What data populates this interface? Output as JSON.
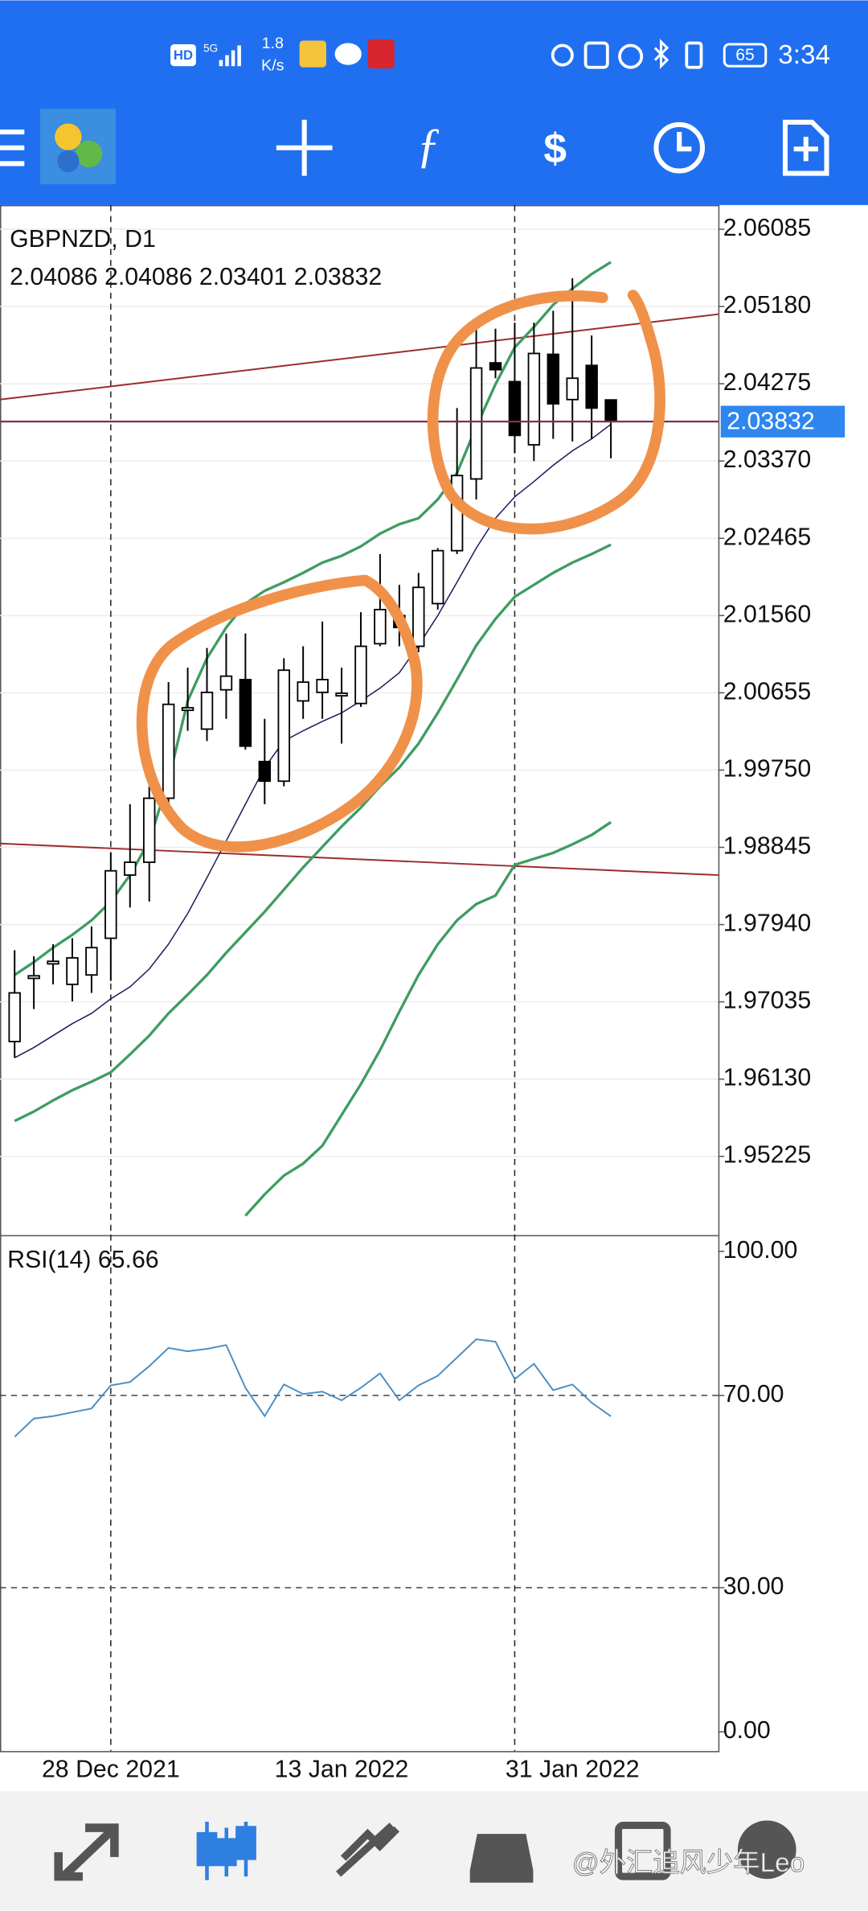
{
  "status_bar": {
    "network": "HD",
    "signal": "5G",
    "speed": "1.8",
    "speed_unit": "K/s",
    "battery": "65",
    "time": "3:34"
  },
  "watermark": "@外汇追风少年Leo",
  "chart_data": [
    {
      "type": "candlestick",
      "title": "GBPNZD, D1",
      "categories": [
        null,
        null,
        null,
        null,
        null,
        "28 Dec 2021",
        null,
        null,
        null,
        null,
        null,
        null,
        null,
        null,
        null,
        null,
        null,
        "13 Jan 2022",
        null,
        null,
        null,
        null,
        null,
        null,
        null,
        null,
        null,
        null,
        null,
        "31 Jan 2022",
        null,
        null
      ],
      "open": [
        1.9657,
        1.9731,
        1.9748,
        1.9724,
        1.9735,
        1.9778,
        1.9852,
        1.9867,
        1.9942,
        2.0045,
        2.0023,
        2.0069,
        2.0081,
        1.9985,
        1.9962,
        2.0056,
        2.0066,
        2.0062,
        2.0053,
        2.0123,
        2.0156,
        2.012,
        2.017,
        2.0232,
        2.0316,
        2.0452,
        2.043,
        2.0356,
        2.0462,
        2.0409,
        2.0449,
        2.04086
      ],
      "high": [
        1.9764,
        1.9757,
        1.9771,
        1.9778,
        1.9792,
        1.9878,
        1.9935,
        1.9956,
        2.0078,
        2.0095,
        2.0118,
        2.0135,
        2.0135,
        2.0035,
        2.0106,
        2.012,
        2.0149,
        2.0095,
        2.016,
        2.0228,
        2.0192,
        2.0206,
        2.0235,
        2.0399,
        2.0499,
        2.0492,
        2.0499,
        2.0499,
        2.0513,
        2.0551,
        2.0484,
        2.04086
      ],
      "low": [
        1.9638,
        1.9695,
        1.9724,
        1.9704,
        1.9714,
        1.9728,
        1.9814,
        1.9821,
        1.9935,
        2.0021,
        2.0009,
        2.0035,
        1.9999,
        1.9935,
        1.9956,
        2.0035,
        2.0035,
        2.0006,
        2.0049,
        2.012,
        2.012,
        2.0113,
        2.0163,
        2.0228,
        2.0292,
        2.0434,
        2.0346,
        2.0337,
        2.0363,
        2.036,
        2.0363,
        2.03401
      ],
      "close": [
        1.9714,
        1.9734,
        1.9751,
        1.9755,
        1.9767,
        1.9857,
        1.9867,
        1.9942,
        2.0052,
        2.0048,
        2.0066,
        2.0085,
        2.0003,
        1.9962,
        2.0092,
        2.0078,
        2.0081,
        2.0065,
        2.012,
        2.0163,
        2.0142,
        2.0189,
        2.0232,
        2.032,
        2.0446,
        2.0444,
        2.0367,
        2.0463,
        2.0404,
        2.0434,
        2.0399,
        2.03832
      ],
      "up_color": "#ffffff",
      "down_color": "#000000",
      "series": [
        {
          "color": "#3f9c62",
          "values": [
            1.9735,
            1.975,
            1.9767,
            1.9782,
            1.9799,
            1.9821,
            1.9852,
            1.9892,
            1.9963,
            2.0056,
            2.0106,
            2.0142,
            2.017,
            2.0185,
            2.0195,
            2.0206,
            2.0218,
            2.0226,
            2.0237,
            2.0252,
            2.0263,
            2.027,
            2.0292,
            2.0323,
            2.0377,
            2.0427,
            2.047,
            2.0494,
            2.052,
            2.0539,
            2.0556,
            2.057
          ]
        },
        {
          "color": "#1c1c5a",
          "values": [
            1.9638,
            1.965,
            1.9664,
            1.9678,
            1.969,
            1.9707,
            1.9721,
            1.9742,
            1.9771,
            1.9807,
            1.9849,
            1.9892,
            1.9935,
            1.9978,
            2.0009,
            2.0021,
            2.0032,
            2.0042,
            2.0056,
            2.0071,
            2.0089,
            2.0121,
            2.0156,
            2.0195,
            2.0235,
            2.027,
            2.0295,
            2.0313,
            2.0332,
            2.0349,
            2.0363,
            2.038
          ]
        },
        {
          "color": "#3f9c62",
          "values": [
            1.9564,
            1.9575,
            1.9588,
            1.96,
            1.961,
            1.9621,
            1.9642,
            1.9664,
            1.969,
            1.9712,
            1.9735,
            1.9761,
            1.9785,
            1.9809,
            1.9835,
            1.9861,
            1.9885,
            1.9909,
            1.9931,
            1.9956,
            1.9978,
            2.0006,
            2.0042,
            2.0081,
            2.0121,
            2.0152,
            2.0178,
            2.0192,
            2.0206,
            2.0218,
            2.0228,
            2.0239
          ]
        },
        {
          "color": "#3f9c62",
          "values": [
            null,
            null,
            null,
            null,
            null,
            null,
            null,
            null,
            null,
            null,
            null,
            null,
            1.9453,
            1.9478,
            1.95,
            1.9514,
            1.9535,
            1.9571,
            1.9607,
            1.9647,
            1.9692,
            1.9735,
            1.9771,
            1.9799,
            1.9818,
            1.9828,
            1.9864,
            1.9871,
            1.9878,
            1.9888,
            1.9899,
            1.9914
          ]
        }
      ],
      "trendlines": [
        {
          "color": "#9b2c2c",
          "values": [
            2.0409,
            2.0509
          ]
        },
        {
          "color": "#9b2c2c",
          "values": [
            1.9889,
            1.9852
          ]
        }
      ],
      "bid_color": "#7d2f55",
      "bid_label_color": "#2f86ee",
      "ylim": [
        1.9431,
        2.0634
      ],
      "yticks": [
        2.06085,
        {
          "value": 2.0518,
          "label": "2.05180"
        },
        2.04275,
        {
          "value": 2.0337,
          "label": "2.03370"
        },
        2.02465,
        {
          "value": 2.0156,
          "label": "2.01560"
        },
        2.00655,
        {
          "value": 1.9975,
          "label": "1.99750"
        },
        1.98845,
        {
          "value": 1.9794,
          "label": "1.97940"
        },
        1.97035,
        {
          "value": 1.9613,
          "label": "1.96130"
        },
        1.95225
      ],
      "xgrid": [
        5,
        26
      ],
      "grid": true
    },
    {
      "type": "line",
      "title": "RSI(14)",
      "color": "#4a8fc4",
      "values": [
        61.4,
        65.2,
        65.7,
        66.5,
        67.3,
        72.1,
        72.8,
        76.1,
        79.9,
        79.2,
        79.7,
        80.5,
        71.6,
        65.7,
        72.3,
        70.3,
        70.8,
        69.0,
        71.6,
        74.6,
        69.0,
        72.1,
        74.1,
        77.9,
        81.7,
        81.2,
        73.4,
        76.6,
        71.1,
        72.3,
        68.5,
        65.66
      ],
      "ylim": [
        -4,
        103
      ],
      "yticks": [
        {
          "value": 100,
          "label": "100.00"
        },
        {
          "value": 70,
          "label": "70.00"
        },
        {
          "value": 30,
          "label": "30.00"
        },
        {
          "value": 0,
          "label": "0.00"
        }
      ],
      "levels": [
        70,
        30
      ],
      "xgrid": [
        5,
        26
      ]
    }
  ]
}
